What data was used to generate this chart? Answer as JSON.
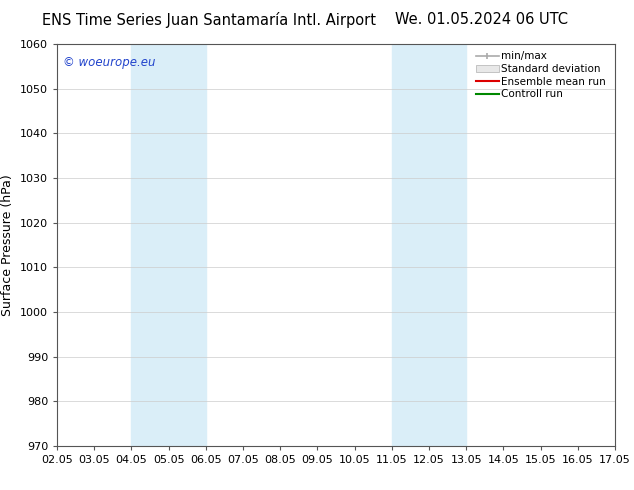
{
  "title_left": "ENS Time Series Juan Santamaría Intl. Airport",
  "title_right": "We. 01.05.2024 06 UTC",
  "ylabel": "Surface Pressure (hPa)",
  "ylim": [
    970,
    1060
  ],
  "yticks": [
    970,
    980,
    990,
    1000,
    1010,
    1020,
    1030,
    1040,
    1050,
    1060
  ],
  "xlim_dates": [
    "02.05",
    "03.05",
    "04.05",
    "05.05",
    "06.05",
    "07.05",
    "08.05",
    "09.05",
    "10.05",
    "11.05",
    "12.05",
    "13.05",
    "14.05",
    "15.05",
    "16.05",
    "17.05"
  ],
  "xtick_positions": [
    0,
    1,
    2,
    3,
    4,
    5,
    6,
    7,
    8,
    9,
    10,
    11,
    12,
    13,
    14,
    15
  ],
  "shaded_regions": [
    {
      "xstart": 2,
      "xend": 4,
      "color": "#daeef8"
    },
    {
      "xstart": 9,
      "xend": 11,
      "color": "#daeef8"
    }
  ],
  "watermark_text": "© woeurope.eu",
  "watermark_color": "#2244cc",
  "legend_entries": [
    "min/max",
    "Standard deviation",
    "Ensemble mean run",
    "Controll run"
  ],
  "legend_line_colors": [
    "#aaaaaa",
    "#cccccc",
    "#dd0000",
    "#008800"
  ],
  "bg_color": "#ffffff",
  "plot_bg_color": "#ffffff",
  "spine_color": "#555555",
  "grid_color": "#cccccc",
  "title_fontsize": 10.5,
  "tick_fontsize": 8,
  "ylabel_fontsize": 9
}
